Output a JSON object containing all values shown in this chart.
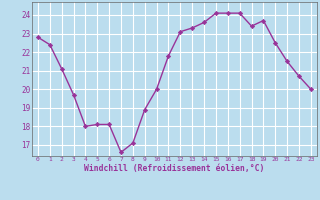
{
  "x": [
    0,
    1,
    2,
    3,
    4,
    5,
    6,
    7,
    8,
    9,
    10,
    11,
    12,
    13,
    14,
    15,
    16,
    17,
    18,
    19,
    20,
    21,
    22,
    23
  ],
  "y": [
    22.8,
    22.4,
    21.1,
    19.7,
    18.0,
    18.1,
    18.1,
    16.6,
    17.1,
    18.9,
    20.0,
    21.8,
    23.1,
    23.3,
    23.6,
    24.1,
    24.1,
    24.1,
    23.4,
    23.7,
    22.5,
    21.5,
    20.7,
    20.0
  ],
  "line_color": "#993399",
  "marker": "D",
  "marker_size": 2.2,
  "bg_color": "#bbddee",
  "grid_color": "#ffffff",
  "xlabel": "Windchill (Refroidissement éolien,°C)",
  "xlabel_color": "#993399",
  "tick_color": "#993399",
  "ylim": [
    16.4,
    24.7
  ],
  "yticks": [
    17,
    18,
    19,
    20,
    21,
    22,
    23,
    24
  ],
  "xlim": [
    -0.5,
    23.5
  ],
  "line_width": 1.0
}
